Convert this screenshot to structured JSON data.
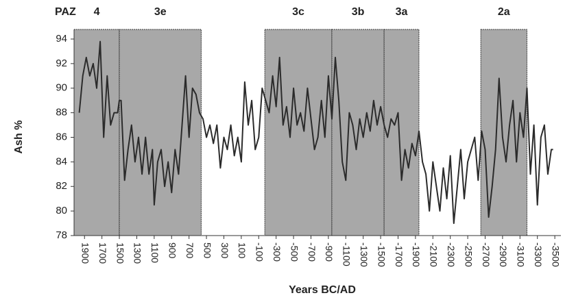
{
  "chart_data": {
    "type": "line",
    "y_label": "Ash %",
    "x_label": "Years BC/AD",
    "zones_title": "PAZ",
    "zones": [
      {
        "label": "4",
        "start": 2020,
        "end": 1500
      },
      {
        "label": "3e",
        "start": 1500,
        "end": 560
      },
      {
        "label": "3c",
        "start": -170,
        "end": -940
      },
      {
        "label": "3b",
        "start": -940,
        "end": -1540
      },
      {
        "label": "3a",
        "start": -1540,
        "end": -1940
      },
      {
        "label": "2a",
        "start": -2650,
        "end": -3180
      }
    ],
    "zone_color": "#a8a8a8",
    "color": "#2b2b2b",
    "xlim": [
      2020,
      -3570
    ],
    "ylim": [
      78,
      94
    ],
    "xticks": [
      1900,
      1700,
      1500,
      1300,
      1100,
      900,
      700,
      500,
      300,
      100,
      -100,
      -300,
      -500,
      -700,
      -900,
      -1100,
      -1300,
      -1500,
      -1700,
      -1900,
      -2100,
      -2300,
      -2500,
      -2700,
      -2900,
      -3100,
      -3300,
      -3500
    ],
    "yticks": [
      78,
      80,
      82,
      84,
      86,
      88,
      90,
      92,
      94
    ],
    "x": [
      1960,
      1920,
      1880,
      1840,
      1800,
      1760,
      1720,
      1700,
      1680,
      1640,
      1600,
      1560,
      1520,
      1500,
      1480,
      1440,
      1400,
      1360,
      1320,
      1280,
      1240,
      1200,
      1160,
      1120,
      1100,
      1060,
      1020,
      980,
      940,
      900,
      860,
      820,
      780,
      740,
      700,
      660,
      620,
      580,
      540,
      500,
      460,
      420,
      380,
      340,
      300,
      260,
      220,
      180,
      140,
      100,
      60,
      20,
      -20,
      -60,
      -100,
      -140,
      -180,
      -220,
      -260,
      -300,
      -340,
      -380,
      -420,
      -460,
      -500,
      -540,
      -580,
      -620,
      -660,
      -700,
      -740,
      -780,
      -820,
      -860,
      -900,
      -940,
      -980,
      -1020,
      -1060,
      -1100,
      -1140,
      -1180,
      -1220,
      -1260,
      -1300,
      -1340,
      -1380,
      -1420,
      -1460,
      -1500,
      -1540,
      -1580,
      -1620,
      -1660,
      -1700,
      -1740,
      -1780,
      -1820,
      -1860,
      -1900,
      -1940,
      -1980,
      -2020,
      -2060,
      -2100,
      -2140,
      -2180,
      -2220,
      -2260,
      -2300,
      -2340,
      -2380,
      -2420,
      -2460,
      -2500,
      -2540,
      -2580,
      -2620,
      -2660,
      -2700,
      -2740,
      -2780,
      -2820,
      -2860,
      -2900,
      -2940,
      -2980,
      -3020,
      -3060,
      -3100,
      -3140,
      -3180,
      -3220,
      -3260,
      -3300,
      -3340,
      -3380,
      -3420,
      -3460,
      -3480
    ],
    "values": [
      88,
      91,
      92.5,
      91,
      92,
      90,
      93.8,
      90,
      86,
      91,
      87,
      88,
      88,
      89,
      89,
      82.5,
      85,
      87,
      84,
      86,
      83,
      86,
      83,
      85,
      80.5,
      84,
      85,
      82,
      84,
      81.5,
      85,
      83,
      87,
      91,
      86,
      90,
      89.5,
      88,
      87.5,
      86,
      87,
      85.5,
      87,
      83.5,
      86,
      85,
      87,
      84.5,
      86,
      84,
      90.5,
      87,
      89,
      85,
      86,
      90,
      89,
      88,
      91,
      88.5,
      92.5,
      87,
      88.5,
      86,
      90,
      87,
      88,
      86.5,
      90,
      87.5,
      85,
      86,
      89,
      86,
      91,
      87.5,
      92.5,
      89,
      84,
      82.5,
      88,
      87,
      85,
      87.5,
      86,
      88,
      86.5,
      89,
      87,
      88.5,
      87,
      86,
      87.5,
      87,
      88,
      82.5,
      85,
      83.5,
      85.5,
      84.5,
      86.5,
      84,
      83,
      80,
      84,
      82,
      80,
      83.5,
      81,
      84.5,
      79,
      82,
      85,
      81,
      84,
      85,
      86,
      82.5,
      86.5,
      85,
      79.5,
      82,
      85,
      90.8,
      86,
      84,
      87,
      89,
      84,
      88,
      86,
      90,
      83,
      87,
      80.5,
      86,
      87,
      83,
      85,
      85
    ]
  }
}
